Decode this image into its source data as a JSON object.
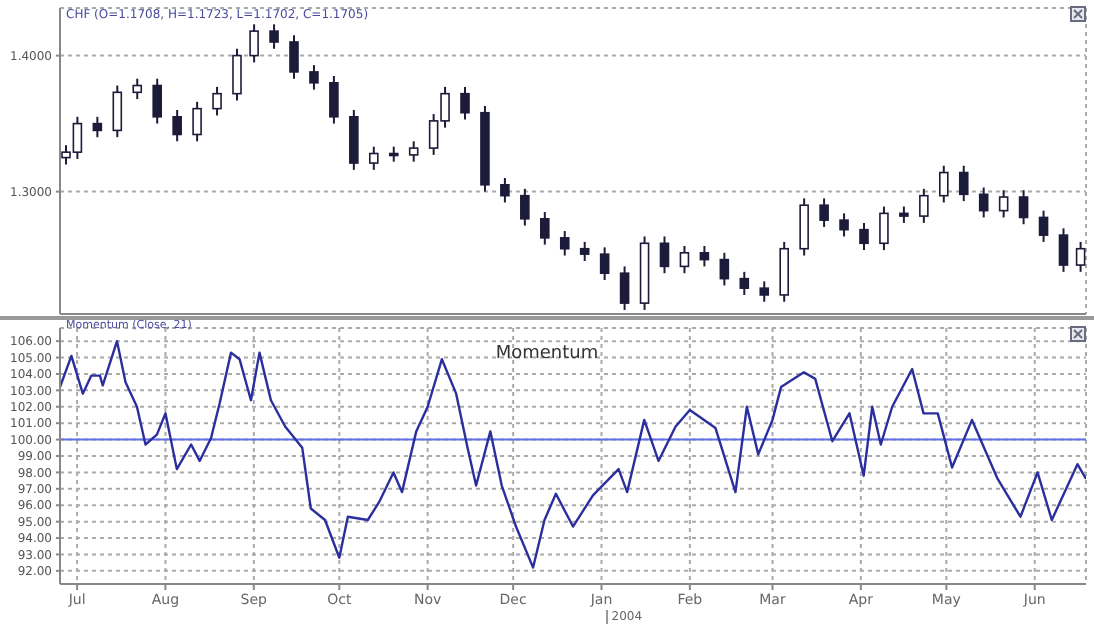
{
  "chart_data": [
    {
      "type": "candlestick",
      "title": "CHF (O=1.1708, H=1.1723, L=1.1702, C=1.1705)",
      "color": "#1c1c3a",
      "grid": true,
      "tick_labels": "y",
      "x": [
        "2003-06-27",
        "2003-07-01",
        "2003-07-08",
        "2003-07-15",
        "2003-07-22",
        "2003-07-29",
        "2003-08-05",
        "2003-08-12",
        "2003-08-19",
        "2003-08-26",
        "2003-09-01",
        "2003-09-08",
        "2003-09-15",
        "2003-09-22",
        "2003-09-29",
        "2003-10-06",
        "2003-10-13",
        "2003-10-20",
        "2003-10-27",
        "2003-11-03",
        "2003-11-07",
        "2003-11-14",
        "2003-11-21",
        "2003-11-28",
        "2003-12-05",
        "2003-12-12",
        "2003-12-19",
        "2003-12-26",
        "2004-01-02",
        "2004-01-09",
        "2004-01-16",
        "2004-01-23",
        "2004-01-30",
        "2004-02-06",
        "2004-02-13",
        "2004-02-20",
        "2004-02-27",
        "2004-03-05",
        "2004-03-12",
        "2004-03-19",
        "2004-03-26",
        "2004-04-02",
        "2004-04-09",
        "2004-04-16",
        "2004-04-23",
        "2004-04-30",
        "2004-05-07",
        "2004-05-14",
        "2004-05-21",
        "2004-05-28",
        "2004-06-04",
        "2004-06-11",
        "2004-06-17"
      ],
      "ohlc": [
        [
          1.325,
          1.334,
          1.32,
          1.329
        ],
        [
          1.329,
          1.355,
          1.324,
          1.35
        ],
        [
          1.35,
          1.355,
          1.34,
          1.345
        ],
        [
          1.345,
          1.378,
          1.34,
          1.373
        ],
        [
          1.373,
          1.383,
          1.368,
          1.378
        ],
        [
          1.378,
          1.383,
          1.35,
          1.355
        ],
        [
          1.355,
          1.36,
          1.337,
          1.342
        ],
        [
          1.342,
          1.366,
          1.337,
          1.361
        ],
        [
          1.361,
          1.377,
          1.356,
          1.372
        ],
        [
          1.372,
          1.405,
          1.367,
          1.4
        ],
        [
          1.4,
          1.423,
          1.395,
          1.418
        ],
        [
          1.418,
          1.423,
          1.405,
          1.41
        ],
        [
          1.41,
          1.415,
          1.383,
          1.388
        ],
        [
          1.388,
          1.393,
          1.375,
          1.38
        ],
        [
          1.38,
          1.385,
          1.35,
          1.355
        ],
        [
          1.355,
          1.36,
          1.316,
          1.321
        ],
        [
          1.321,
          1.333,
          1.316,
          1.328
        ],
        [
          1.328,
          1.333,
          1.322,
          1.327
        ],
        [
          1.327,
          1.337,
          1.322,
          1.332
        ],
        [
          1.332,
          1.357,
          1.327,
          1.352
        ],
        [
          1.352,
          1.377,
          1.347,
          1.372
        ],
        [
          1.372,
          1.377,
          1.353,
          1.358
        ],
        [
          1.358,
          1.363,
          1.3,
          1.305
        ],
        [
          1.305,
          1.31,
          1.292,
          1.297
        ],
        [
          1.297,
          1.302,
          1.275,
          1.28
        ],
        [
          1.28,
          1.285,
          1.261,
          1.266
        ],
        [
          1.266,
          1.271,
          1.253,
          1.258
        ],
        [
          1.258,
          1.263,
          1.249,
          1.254
        ],
        [
          1.254,
          1.259,
          1.235,
          1.24
        ],
        [
          1.24,
          1.245,
          1.213,
          1.218
        ],
        [
          1.218,
          1.267,
          1.213,
          1.262
        ],
        [
          1.262,
          1.267,
          1.24,
          1.245
        ],
        [
          1.245,
          1.26,
          1.24,
          1.255
        ],
        [
          1.255,
          1.26,
          1.245,
          1.25
        ],
        [
          1.25,
          1.255,
          1.231,
          1.236
        ],
        [
          1.236,
          1.241,
          1.224,
          1.229
        ],
        [
          1.229,
          1.234,
          1.219,
          1.224
        ],
        [
          1.224,
          1.263,
          1.219,
          1.258
        ],
        [
          1.258,
          1.295,
          1.253,
          1.29
        ],
        [
          1.29,
          1.295,
          1.274,
          1.279
        ],
        [
          1.279,
          1.284,
          1.267,
          1.272
        ],
        [
          1.272,
          1.277,
          1.257,
          1.262
        ],
        [
          1.262,
          1.289,
          1.257,
          1.284
        ],
        [
          1.284,
          1.289,
          1.277,
          1.282
        ],
        [
          1.282,
          1.302,
          1.277,
          1.297
        ],
        [
          1.297,
          1.319,
          1.292,
          1.314
        ],
        [
          1.314,
          1.319,
          1.293,
          1.298
        ],
        [
          1.298,
          1.303,
          1.281,
          1.286
        ],
        [
          1.286,
          1.301,
          1.281,
          1.296
        ],
        [
          1.296,
          1.301,
          1.276,
          1.281
        ],
        [
          1.281,
          1.286,
          1.263,
          1.268
        ],
        [
          1.268,
          1.273,
          1.241,
          1.246
        ],
        [
          1.246,
          1.263,
          1.241,
          1.258
        ]
      ],
      "xlim": [
        "2003-06-25",
        "2004-06-19"
      ],
      "xticks": [
        {
          "value": "2003-07-01",
          "label": null
        },
        {
          "value": "2003-08-01",
          "label": null
        },
        {
          "value": "2003-09-01",
          "label": null
        },
        {
          "value": "2003-10-01",
          "label": null
        },
        {
          "value": "2003-11-01",
          "label": null
        },
        {
          "value": "2003-12-01",
          "label": null
        },
        {
          "value": "2004-01-01",
          "label": null
        },
        {
          "value": "2004-02-01",
          "label": null
        },
        {
          "value": "2004-03-01",
          "label": null
        },
        {
          "value": "2004-04-01",
          "label": null
        },
        {
          "value": "2004-05-01",
          "label": null
        },
        {
          "value": "2004-06-01",
          "label": null
        }
      ],
      "ylim": [
        1.21,
        1.435
      ],
      "yticks": [
        {
          "value": 1.4,
          "label": "1.4000"
        },
        {
          "value": 1.3,
          "label": "1.3000"
        }
      ]
    },
    {
      "type": "line",
      "title": "Momentum",
      "subtitle": "Momentum (Close, 21)",
      "grid": true,
      "marker": "none",
      "line_style": "solid",
      "annotations": [
        "2004"
      ],
      "x": [
        "2003-06-25",
        "2003-06-29",
        "2003-07-03",
        "2003-07-06",
        "2003-07-09",
        "2003-07-10",
        "2003-07-15",
        "2003-07-18",
        "2003-07-22",
        "2003-07-25",
        "2003-07-29",
        "2003-08-01",
        "2003-08-05",
        "2003-08-10",
        "2003-08-13",
        "2003-08-17",
        "2003-08-20",
        "2003-08-24",
        "2003-08-27",
        "2003-08-31",
        "2003-09-03",
        "2003-09-07",
        "2003-09-12",
        "2003-09-18",
        "2003-09-21",
        "2003-09-26",
        "2003-10-01",
        "2003-10-04",
        "2003-10-11",
        "2003-10-15",
        "2003-10-20",
        "2003-10-23",
        "2003-10-28",
        "2003-11-01",
        "2003-11-06",
        "2003-11-11",
        "2003-11-15",
        "2003-11-18",
        "2003-11-23",
        "2003-11-27",
        "2003-12-02",
        "2003-12-08",
        "2003-12-12",
        "2003-12-16",
        "2003-12-22",
        "2003-12-29",
        "2004-01-07",
        "2004-01-10",
        "2004-01-16",
        "2004-01-21",
        "2004-01-27",
        "2004-02-01",
        "2004-02-10",
        "2004-02-17",
        "2004-02-21",
        "2004-02-25",
        "2004-03-01",
        "2004-03-04",
        "2004-03-12",
        "2004-03-16",
        "2004-03-22",
        "2004-03-28",
        "2004-04-02",
        "2004-04-05",
        "2004-04-08",
        "2004-04-12",
        "2004-04-19",
        "2004-04-23",
        "2004-04-28",
        "2004-05-03",
        "2004-05-10",
        "2004-05-19",
        "2004-05-27",
        "2004-06-02",
        "2004-06-07",
        "2004-06-16",
        "2004-06-19"
      ],
      "series": [
        {
          "color": "#2b2f9e",
          "values": [
            103.2,
            105.1,
            102.8,
            103.9,
            103.9,
            103.3,
            106.0,
            103.5,
            102.0,
            99.7,
            100.3,
            101.6,
            98.2,
            99.7,
            98.7,
            100.1,
            102.2,
            105.3,
            104.9,
            102.4,
            105.3,
            102.4,
            100.8,
            99.5,
            95.8,
            95.1,
            92.8,
            95.3,
            95.1,
            96.2,
            98.0,
            96.8,
            100.5,
            102.0,
            104.9,
            102.8,
            99.5,
            97.2,
            100.5,
            97.2,
            94.7,
            92.2,
            95.1,
            96.7,
            94.7,
            96.6,
            98.2,
            96.8,
            101.2,
            98.7,
            100.8,
            101.8,
            100.7,
            96.8,
            102.0,
            99.1,
            101.2,
            103.2,
            104.1,
            103.7,
            99.9,
            101.6,
            97.8,
            102.0,
            99.7,
            102.0,
            104.3,
            101.6,
            101.6,
            98.3,
            101.2,
            97.6,
            95.3,
            98.0,
            95.1,
            98.5,
            97.6
          ]
        }
      ],
      "ref_lines": [
        {
          "axis": "y",
          "value": 100,
          "color": "#6070e8"
        }
      ],
      "xlim": [
        "2003-06-25",
        "2004-06-19"
      ],
      "xticks": [
        {
          "value": "2003-07-01",
          "label": "Jul"
        },
        {
          "value": "2003-08-01",
          "label": "Aug"
        },
        {
          "value": "2003-09-01",
          "label": "Sep"
        },
        {
          "value": "2003-10-01",
          "label": "Oct"
        },
        {
          "value": "2003-11-01",
          "label": "Nov"
        },
        {
          "value": "2003-12-01",
          "label": "Dec"
        },
        {
          "value": "2004-01-01",
          "label": "Jan"
        },
        {
          "value": "2004-02-01",
          "label": "Feb"
        },
        {
          "value": "2004-03-01",
          "label": "Mar"
        },
        {
          "value": "2004-04-01",
          "label": "Apr"
        },
        {
          "value": "2004-05-01",
          "label": "May"
        },
        {
          "value": "2004-06-01",
          "label": "Jun"
        }
      ],
      "ylim": [
        91.2,
        106.8
      ],
      "yticks": [
        {
          "value": 92,
          "label": "92.00"
        },
        {
          "value": 93,
          "label": "93.00"
        },
        {
          "value": 94,
          "label": "94.00"
        },
        {
          "value": 95,
          "label": "95.00"
        },
        {
          "value": 96,
          "label": "96.00"
        },
        {
          "value": 97,
          "label": "97.00"
        },
        {
          "value": 98,
          "label": "98.00"
        },
        {
          "value": 99,
          "label": "99.00"
        },
        {
          "value": 100,
          "label": "100.00"
        },
        {
          "value": 101,
          "label": "101.00"
        },
        {
          "value": 102,
          "label": "102.00"
        },
        {
          "value": 103,
          "label": "103.00"
        },
        {
          "value": 104,
          "label": "104.00"
        },
        {
          "value": 105,
          "label": "105.00"
        },
        {
          "value": 106,
          "label": "106.00"
        }
      ]
    }
  ]
}
